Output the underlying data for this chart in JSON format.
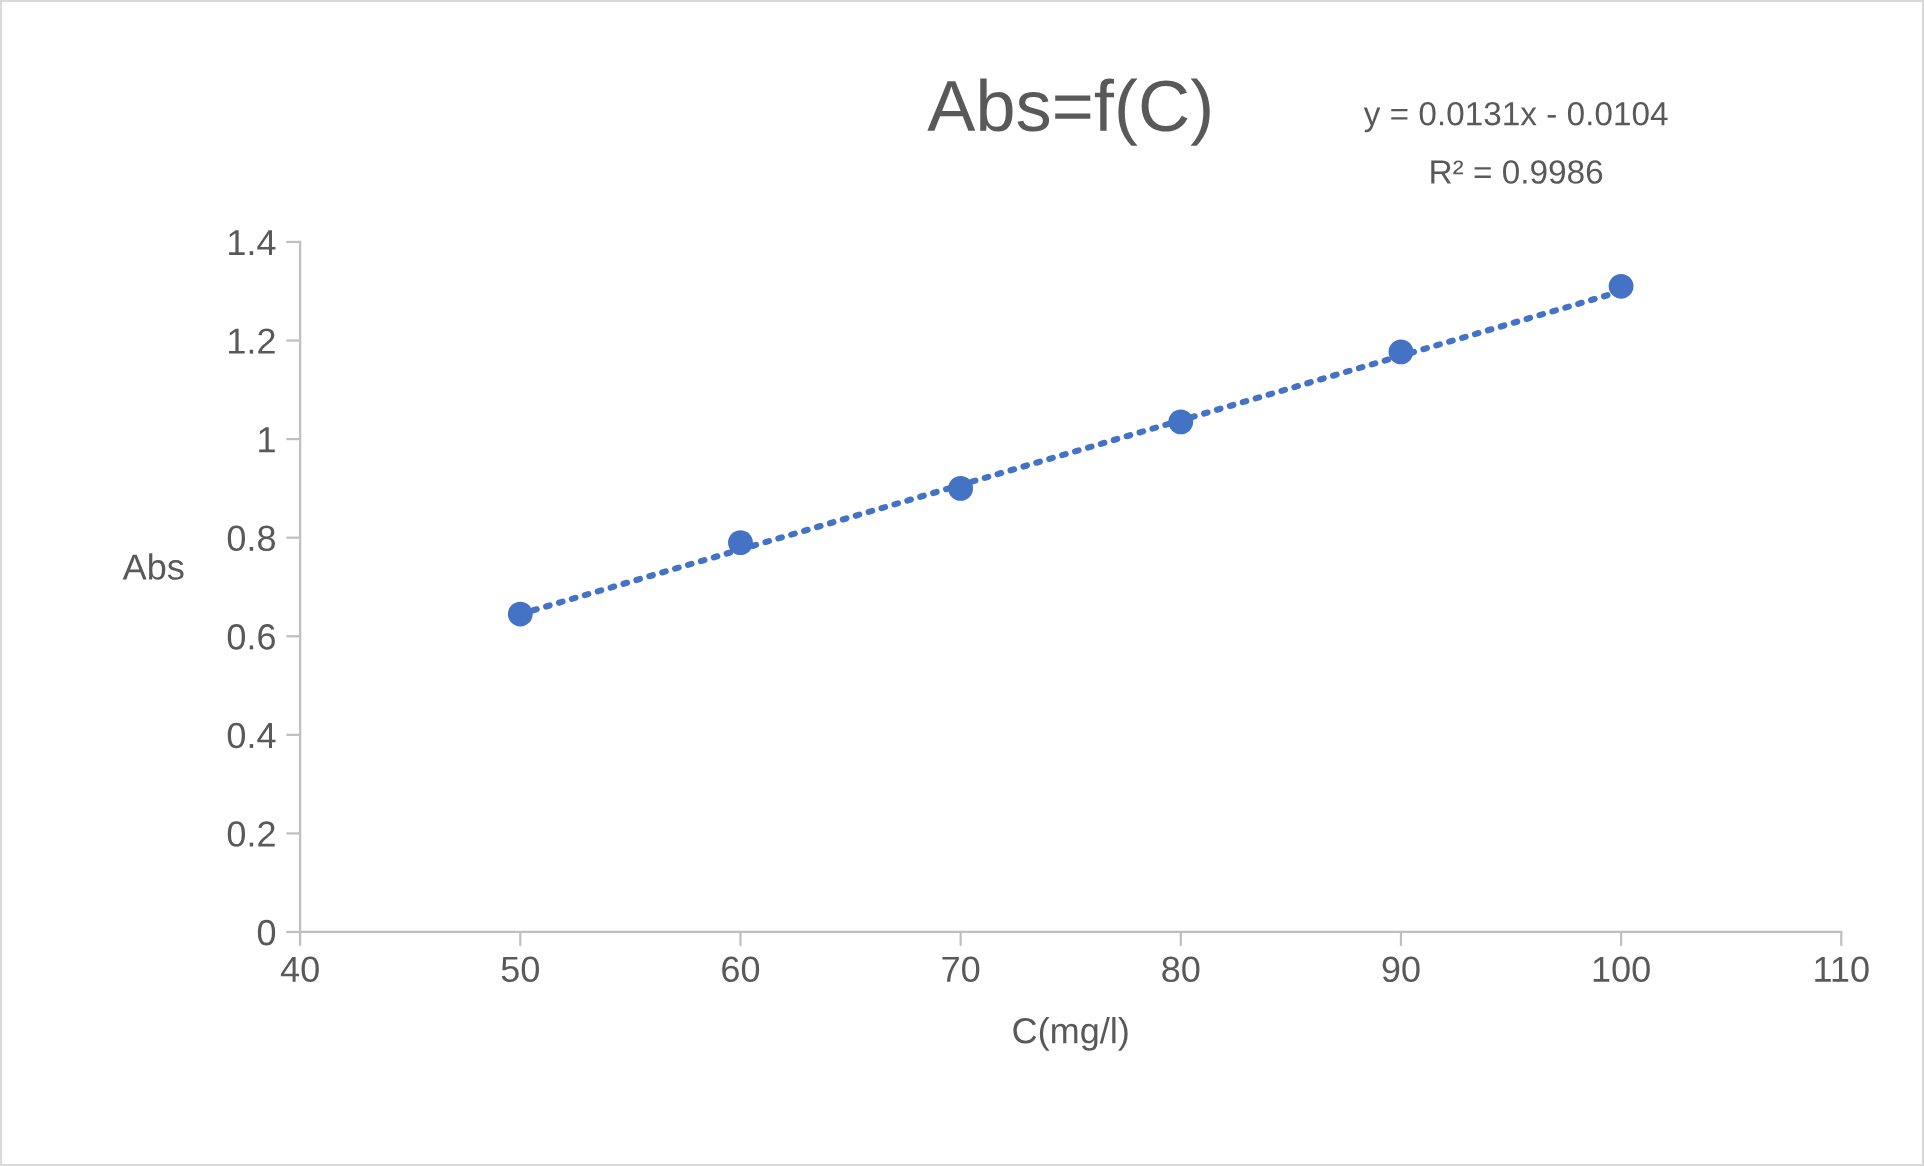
{
  "chart_data": {
    "type": "scatter",
    "title": "Abs=f(C)",
    "xlabel": "C(mg/l)",
    "ylabel": "Abs",
    "x": [
      50,
      60,
      70,
      80,
      90,
      100
    ],
    "series": [
      {
        "color": "#4472c4",
        "values": [
          0.645,
          0.79,
          0.9,
          1.035,
          1.177,
          1.31
        ],
        "marker": "circle"
      },
      {
        "type": "line",
        "color": "#4472c4",
        "x": [
          50,
          100
        ],
        "values": [
          0.645,
          1.3
        ],
        "line_style": "dotted",
        "marker": "none"
      }
    ],
    "annotations": [
      "y = 0.0131x - 0.0104",
      "R² = 0.9986"
    ],
    "xlim": [
      40,
      110
    ],
    "xticks": [
      40,
      50,
      60,
      70,
      80,
      90,
      100,
      110
    ],
    "ylim": [
      0,
      1.4
    ],
    "yticks": [
      0,
      0.2,
      0.4,
      0.6,
      0.8,
      1,
      1.2,
      1.4
    ],
    "grid": false,
    "legend": false
  }
}
